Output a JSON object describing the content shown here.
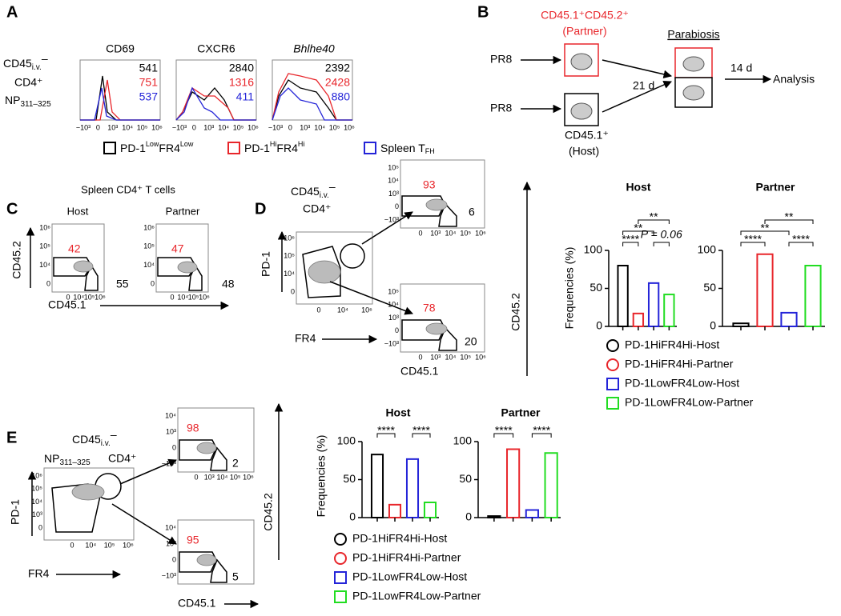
{
  "panels": {
    "a": {
      "label": "A",
      "side_label": [
        "CD45",
        "i.v.",
        "–",
        "CD4⁺",
        "NP",
        "311–325"
      ],
      "hist_titles": [
        "CD69",
        "CXCR6",
        "Bhlhe40"
      ],
      "hist_values": [
        [
          541,
          751,
          537
        ],
        [
          2840,
          1316,
          411
        ],
        [
          2392,
          2428,
          880
        ]
      ],
      "legend": [
        "PD-1",
        "Low",
        "FR4",
        "Low",
        "PD-1",
        "Hi",
        "FR4",
        "Hi",
        "Spleen  T",
        "FH"
      ]
    },
    "b": {
      "label": "B",
      "partner": [
        "CD45.1⁺CD45.2⁺",
        "(Partner)"
      ],
      "stim": "PR8",
      "days1": "21 d",
      "parabiosis": "Parabiosis",
      "host": [
        "CD45.1⁺",
        "(Host)"
      ],
      "days2": "14 d",
      "analysis": "Analysis"
    },
    "c": {
      "label": "C",
      "title": "Spleen CD4⁺ T cells",
      "groups": [
        "Host",
        "Partner"
      ],
      "values": [
        [
          42,
          55
        ],
        [
          47,
          48
        ]
      ],
      "x_label": "CD45.1",
      "y_label": "CD45.2"
    },
    "d": {
      "label": "D",
      "gate": [
        "CD45",
        "i.v.",
        "–",
        "CD4⁺"
      ],
      "values": [
        [
          93,
          6
        ],
        [
          78,
          20
        ]
      ],
      "pd1": "PD-1",
      "fr4": "FR4",
      "x_label": "CD45.1",
      "y_label": "CD45.2",
      "legend": [
        "PD-1HiFR4Hi-Host",
        "PD-1HiFR4Hi-Partner",
        "PD-1LowFR4Low-Host",
        "PD-1LowFR4Low-Partner"
      ]
    },
    "e": {
      "label": "E",
      "gate": [
        "CD45",
        "i.v.",
        "–",
        "NP",
        "311–325",
        "CD4⁺"
      ],
      "values": [
        [
          98,
          2
        ],
        [
          95,
          5
        ]
      ],
      "pd1": "PD-1",
      "fr4": "FR4",
      "x_label": "CD45.1",
      "y_label": "CD45.2",
      "legend": [
        "PD-1HiFR4Hi-Host",
        "PD-1HiFR4Hi-Partner",
        "PD-1LowFR4Low-Host",
        "PD-1LowFR4Low-Partner"
      ]
    }
  },
  "flow_ticks": [
    "−10³",
    "0",
    "10³",
    "10⁴",
    "10⁵",
    "10⁶"
  ],
  "chart_data": [
    {
      "type": "bar",
      "title": "Host",
      "y_label": "Frequencies (%)",
      "categories": [
        null,
        null,
        null,
        null
      ],
      "values": [
        80,
        17,
        57,
        42
      ],
      "colors": [
        "#000000",
        "#e8262b",
        "#2424d8",
        "#22dd22"
      ],
      "ylim": [
        0,
        100
      ],
      "yticks": [
        0,
        50,
        100
      ],
      "annotations": [
        {
          "text": "****",
          "from": 0,
          "to": 1
        },
        {
          "text": "**",
          "from": 0,
          "to": 2
        },
        {
          "text": "**",
          "from": 1,
          "to": 3
        },
        {
          "text": "P = 0.06",
          "from": 2,
          "to": 3
        }
      ]
    },
    {
      "type": "bar",
      "title": "Partner",
      "categories": [
        null,
        null,
        null,
        null
      ],
      "values": [
        4,
        95,
        18,
        80
      ],
      "colors": [
        "#000000",
        "#e8262b",
        "#2424d8",
        "#22dd22"
      ],
      "ylim": [
        0,
        100
      ],
      "yticks": [
        0,
        50,
        100
      ],
      "annotations": [
        {
          "text": "****",
          "from": 0,
          "to": 1
        },
        {
          "text": "**",
          "from": 0,
          "to": 2
        },
        {
          "text": "**",
          "from": 1,
          "to": 3
        },
        {
          "text": "****",
          "from": 2,
          "to": 3
        }
      ]
    },
    {
      "type": "bar",
      "title": "Host",
      "y_label": "Frequencies (%)",
      "categories": [
        null,
        null,
        null,
        null
      ],
      "values": [
        83,
        17,
        77,
        20
      ],
      "colors": [
        "#000000",
        "#e8262b",
        "#2424d8",
        "#22dd22"
      ],
      "ylim": [
        0,
        100
      ],
      "yticks": [
        0,
        50,
        100
      ],
      "annotations": [
        {
          "text": "****",
          "from": 0,
          "to": 1
        },
        {
          "text": "****",
          "from": 2,
          "to": 3
        }
      ]
    },
    {
      "type": "bar",
      "title": "Partner",
      "categories": [
        null,
        null,
        null,
        null
      ],
      "values": [
        2,
        90,
        10,
        85
      ],
      "colors": [
        "#000000",
        "#e8262b",
        "#2424d8",
        "#22dd22"
      ],
      "ylim": [
        0,
        100
      ],
      "yticks": [
        0,
        50,
        100
      ],
      "annotations": [
        {
          "text": "****",
          "from": 0,
          "to": 1
        },
        {
          "text": "****",
          "from": 2,
          "to": 3
        }
      ]
    }
  ]
}
